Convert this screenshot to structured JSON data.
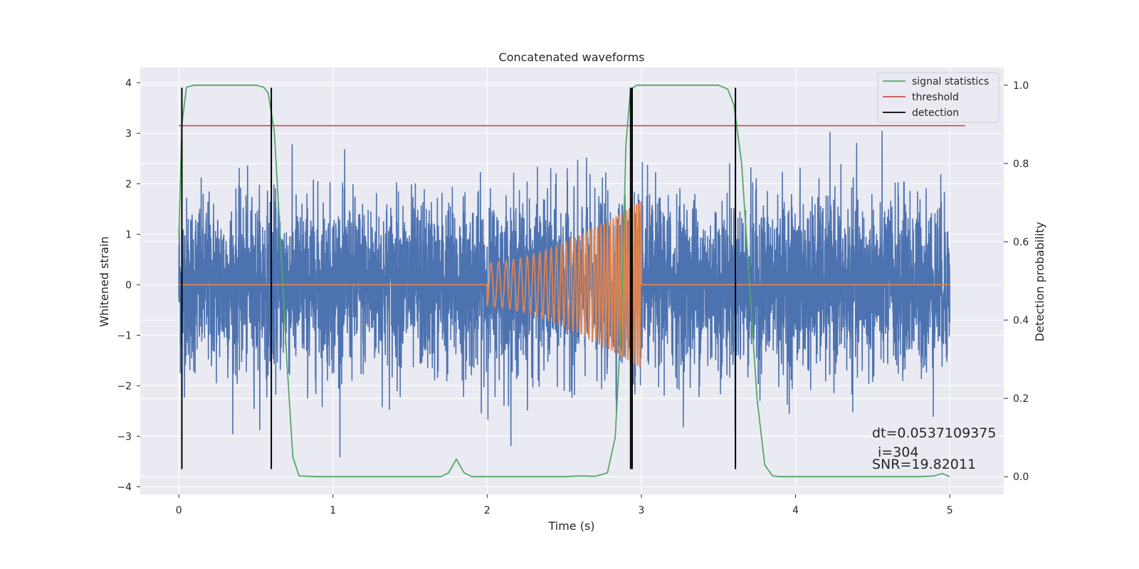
{
  "chart_data": {
    "type": "line",
    "title": "Concatenated waveforms",
    "xlabel": "Time (s)",
    "ylabel_left": "Whitened strain",
    "ylabel_right": "Detection probability",
    "xlim": [
      -0.25,
      5.35
    ],
    "ylim_left": [
      -4.15,
      4.3
    ],
    "ylim_right": [
      -0.045,
      1.045
    ],
    "xticks": [
      0,
      1,
      2,
      3,
      4,
      5
    ],
    "yticks_left": [
      4,
      3,
      2,
      1,
      0,
      -1,
      -2,
      -3,
      -4
    ],
    "yticks_right": [
      1.0,
      0.8,
      0.6,
      0.4,
      0.2,
      0.0
    ],
    "xtick_labels": [
      "0",
      "1",
      "2",
      "3",
      "4",
      "5"
    ],
    "ytick_labels_left": [
      "4",
      "3",
      "2",
      "1",
      "0",
      "−1",
      "−2",
      "−3",
      "−4"
    ],
    "ytick_labels_right": [
      "1.0",
      "0.8",
      "0.6",
      "0.4",
      "0.2",
      "0.0"
    ],
    "grid": true,
    "legend_position": "top-right",
    "legend": [
      {
        "label": "signal statistics",
        "color": "#55a868"
      },
      {
        "label": "threshold",
        "color": "#c44e52"
      },
      {
        "label": "detection",
        "color": "#000000"
      }
    ],
    "noise_series": {
      "color": "#4c72b0",
      "x_range": [
        0,
        5
      ],
      "amplitude_std": 0.85,
      "approx_range": [
        -3.7,
        3.9
      ]
    },
    "injected_signal": {
      "color": "#dd8452",
      "start": 2.0,
      "end": 3.0,
      "amplitude_start": 0.45,
      "amplitude_end": 1.75,
      "freq_start": 20,
      "freq_end": 70
    },
    "threshold": {
      "value": 3.15,
      "x_range": [
        0,
        5.1
      ],
      "color": "#c44e52"
    },
    "signal_statistics": {
      "color": "#55a868",
      "axis": "right",
      "points": [
        [
          0.0,
          0.61
        ],
        [
          0.02,
          0.9
        ],
        [
          0.05,
          0.995
        ],
        [
          0.1,
          1.0
        ],
        [
          0.5,
          1.0
        ],
        [
          0.55,
          0.995
        ],
        [
          0.58,
          0.98
        ],
        [
          0.62,
          0.88
        ],
        [
          0.66,
          0.6
        ],
        [
          0.7,
          0.3
        ],
        [
          0.74,
          0.05
        ],
        [
          0.78,
          0.002
        ],
        [
          0.9,
          0.0
        ],
        [
          1.7,
          0.0
        ],
        [
          1.75,
          0.01
        ],
        [
          1.8,
          0.045
        ],
        [
          1.85,
          0.01
        ],
        [
          1.9,
          0.0
        ],
        [
          2.5,
          0.0
        ],
        [
          2.6,
          0.002
        ],
        [
          2.7,
          0.001
        ],
        [
          2.78,
          0.01
        ],
        [
          2.83,
          0.1
        ],
        [
          2.87,
          0.4
        ],
        [
          2.9,
          0.85
        ],
        [
          2.93,
          0.99
        ],
        [
          2.97,
          1.0
        ],
        [
          3.5,
          1.0
        ],
        [
          3.56,
          0.99
        ],
        [
          3.6,
          0.95
        ],
        [
          3.65,
          0.8
        ],
        [
          3.7,
          0.5
        ],
        [
          3.75,
          0.2
        ],
        [
          3.8,
          0.03
        ],
        [
          3.85,
          0.002
        ],
        [
          3.9,
          0.0
        ],
        [
          4.8,
          0.0
        ],
        [
          4.9,
          0.002
        ],
        [
          4.95,
          0.008
        ],
        [
          5.0,
          0.0
        ]
      ]
    },
    "detections": [
      0.02,
      0.6,
      2.93,
      2.94,
      3.61
    ],
    "detection_range": [
      -3.65,
      3.9
    ],
    "annotations": [
      "dt=0.0537109375",
      "i=304",
      "SNR=19.82011"
    ]
  }
}
